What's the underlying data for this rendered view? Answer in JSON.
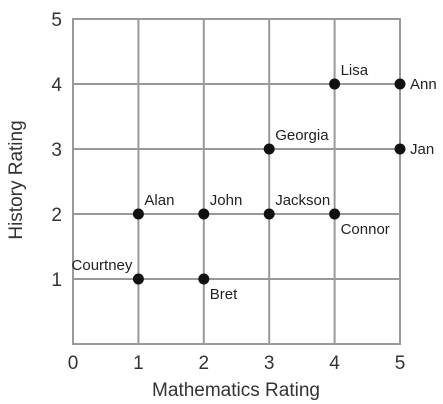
{
  "chart_data": {
    "type": "scatter",
    "xlabel": "Mathematics Rating",
    "ylabel": "History Rating",
    "xlim": [
      0,
      5
    ],
    "ylim": [
      0,
      5
    ],
    "grid": true,
    "x_ticks": [
      "0",
      "1",
      "2",
      "3",
      "4",
      "5"
    ],
    "y_ticks": [
      "1",
      "2",
      "3",
      "4",
      "5"
    ],
    "points": [
      {
        "name": "Courtney",
        "x": 1,
        "y": 1,
        "label_pos": "upper-left"
      },
      {
        "name": "Bret",
        "x": 2,
        "y": 1,
        "label_pos": "lower-right"
      },
      {
        "name": "Alan",
        "x": 1,
        "y": 2,
        "label_pos": "upper-right"
      },
      {
        "name": "John",
        "x": 2,
        "y": 2,
        "label_pos": "upper-right"
      },
      {
        "name": "Jackson",
        "x": 3,
        "y": 2,
        "label_pos": "upper-right"
      },
      {
        "name": "Connor",
        "x": 4,
        "y": 2,
        "label_pos": "lower-right"
      },
      {
        "name": "Georgia",
        "x": 3,
        "y": 3,
        "label_pos": "upper-right"
      },
      {
        "name": "Jan",
        "x": 5,
        "y": 3,
        "label_pos": "right"
      },
      {
        "name": "Lisa",
        "x": 4,
        "y": 4,
        "label_pos": "upper-right"
      },
      {
        "name": "Ann",
        "x": 5,
        "y": 4,
        "label_pos": "right"
      }
    ],
    "colors": {
      "grid": "#999999",
      "point": "#111111",
      "text": "#333333"
    }
  }
}
